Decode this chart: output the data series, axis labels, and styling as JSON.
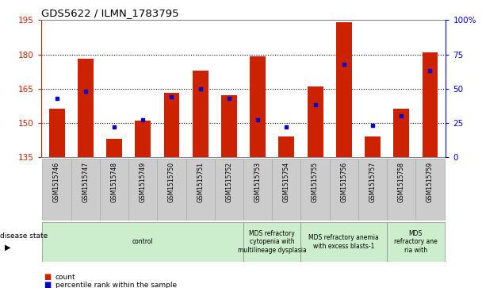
{
  "title": "GDS5622 / ILMN_1783795",
  "samples": [
    "GSM1515746",
    "GSM1515747",
    "GSM1515748",
    "GSM1515749",
    "GSM1515750",
    "GSM1515751",
    "GSM1515752",
    "GSM1515753",
    "GSM1515754",
    "GSM1515755",
    "GSM1515756",
    "GSM1515757",
    "GSM1515758",
    "GSM1515759"
  ],
  "count_values": [
    156,
    178,
    143,
    151,
    163,
    173,
    162,
    179,
    144,
    166,
    194,
    144,
    156,
    181
  ],
  "percentile_values": [
    43,
    48,
    22,
    27,
    44,
    50,
    43,
    27,
    22,
    38,
    68,
    23,
    30,
    63
  ],
  "ymin": 135,
  "ymax": 195,
  "y_ticks": [
    135,
    150,
    165,
    180,
    195
  ],
  "y2min": 0,
  "y2max": 100,
  "y2_ticks": [
    0,
    25,
    50,
    75,
    100
  ],
  "bar_color": "#cc2200",
  "dot_color": "#0000cc",
  "grid_color": "#000000",
  "bg_color": "#ffffff",
  "plot_bg": "#ffffff",
  "legend_count_label": "count",
  "legend_pct_label": "percentile rank within the sample",
  "disease_groups": [
    {
      "label": "control",
      "start": 0,
      "end": 6
    },
    {
      "label": "MDS refractory\ncytopenia with\nmultilineage dysplasia",
      "start": 7,
      "end": 8
    },
    {
      "label": "MDS refractory anemia\nwith excess blasts-1",
      "start": 9,
      "end": 11
    },
    {
      "label": "MDS\nrefractory ane\nria with",
      "start": 12,
      "end": 13
    }
  ],
  "disease_color": "#cceecc",
  "disease_border": "#888888",
  "sample_bg": "#cccccc",
  "sample_border": "#aaaaaa"
}
